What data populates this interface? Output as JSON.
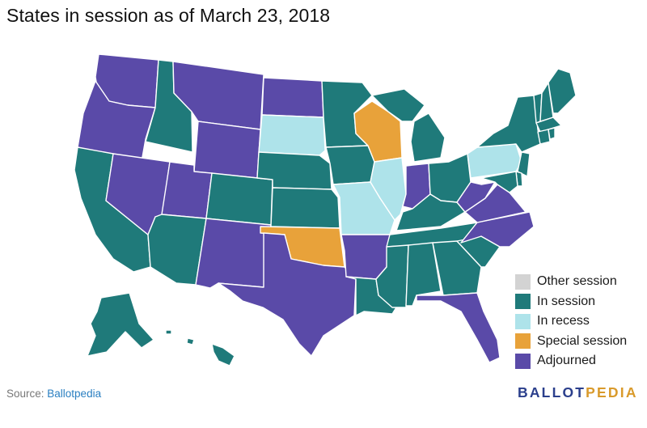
{
  "title": "States in session as of March 23, 2018",
  "colors": {
    "other_session": "#d3d3d3",
    "in_session": "#1f7a7a",
    "in_recess": "#aee3ea",
    "special_session": "#e8a23a",
    "adjourned": "#5a4aa8"
  },
  "legend": [
    {
      "label": "Other session",
      "status": "other_session"
    },
    {
      "label": "In session",
      "status": "in_session"
    },
    {
      "label": "In recess",
      "status": "in_recess"
    },
    {
      "label": "Special session",
      "status": "special_session"
    },
    {
      "label": "Adjourned",
      "status": "adjourned"
    }
  ],
  "states": {
    "WA": "adjourned",
    "OR": "adjourned",
    "CA": "in_session",
    "NV": "adjourned",
    "ID": "in_session",
    "MT": "adjourned",
    "WY": "adjourned",
    "UT": "adjourned",
    "AZ": "in_session",
    "CO": "in_session",
    "NM": "adjourned",
    "ND": "adjourned",
    "SD": "in_recess",
    "NE": "in_session",
    "KS": "in_session",
    "OK": "special_session",
    "TX": "adjourned",
    "MN": "in_session",
    "IA": "in_session",
    "MO": "in_recess",
    "AR": "adjourned",
    "LA": "in_session",
    "WI": "special_session",
    "IL": "in_recess",
    "MI": "in_session",
    "IN": "adjourned",
    "OH": "in_session",
    "KY": "in_session",
    "TN": "in_session",
    "MS": "in_session",
    "AL": "in_session",
    "GA": "in_session",
    "FL": "adjourned",
    "SC": "in_session",
    "NC": "adjourned",
    "VA": "adjourned",
    "WV": "adjourned",
    "PA": "in_recess",
    "NY": "in_session",
    "VT": "in_session",
    "NH": "in_session",
    "ME": "in_session",
    "MA": "in_session",
    "CT": "in_session",
    "RI": "in_session",
    "NJ": "in_session",
    "DE": "in_session",
    "MD": "in_session",
    "AK": "in_session",
    "HI": "in_session"
  },
  "source": {
    "prefix": "Source: ",
    "link_text": "Ballotpedia"
  },
  "logo": {
    "part1": "BALLOT",
    "part2": "PEDIA"
  }
}
